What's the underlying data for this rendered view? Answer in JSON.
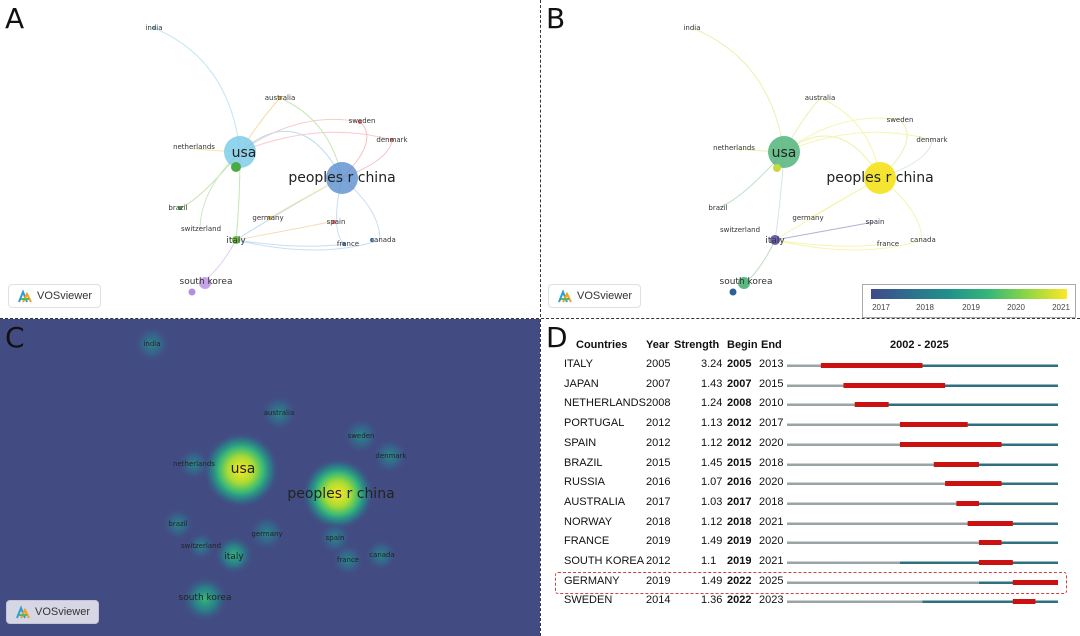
{
  "panel_labels": {
    "a": "A",
    "b": "B",
    "c": "C",
    "d": "D"
  },
  "vosviewer_label": "VOSviewer",
  "nodes": [
    {
      "name": "india"
    },
    {
      "name": "australia"
    },
    {
      "name": "sweden"
    },
    {
      "name": "denmark"
    },
    {
      "name": "netherlands"
    },
    {
      "name": "usa"
    },
    {
      "name": "peoples r china"
    },
    {
      "name": "brazil"
    },
    {
      "name": "germany"
    },
    {
      "name": "spain"
    },
    {
      "name": "switzerland"
    },
    {
      "name": "italy"
    },
    {
      "name": "france"
    },
    {
      "name": "canada"
    },
    {
      "name": "south korea"
    }
  ],
  "colorbar": {
    "ticks": [
      "2017",
      "2018",
      "2019",
      "2020",
      "2021"
    ],
    "colors": [
      "#3e4a89",
      "#21918c",
      "#fde725"
    ]
  },
  "chart_data": {
    "type": "table",
    "title": "2002 - 2025",
    "columns": [
      "Countries",
      "Year",
      "Strength",
      "Begin",
      "End",
      "2002 - 2025"
    ],
    "range": [
      2002,
      2025
    ],
    "rows": [
      {
        "country": "ITALY",
        "year": "2005",
        "strength": "3.24",
        "begin": "2005",
        "end": "2013"
      },
      {
        "country": "JAPAN",
        "year": "2007",
        "strength": "1.43",
        "begin": "2007",
        "end": "2015"
      },
      {
        "country": "NETHERLANDS",
        "year": "2008",
        "strength": "1.24",
        "begin": "2008",
        "end": "2010"
      },
      {
        "country": "PORTUGAL",
        "year": "2012",
        "strength": "1.13",
        "begin": "2012",
        "end": "2017"
      },
      {
        "country": "SPAIN",
        "year": "2012",
        "strength": "1.12",
        "begin": "2012",
        "end": "2020"
      },
      {
        "country": "BRAZIL",
        "year": "2015",
        "strength": "1.45",
        "begin": "2015",
        "end": "2018"
      },
      {
        "country": "RUSSIA",
        "year": "2016",
        "strength": "1.07",
        "begin": "2016",
        "end": "2020"
      },
      {
        "country": "AUSTRALIA",
        "year": "2017",
        "strength": "1.03",
        "begin": "2017",
        "end": "2018"
      },
      {
        "country": "NORWAY",
        "year": "2018",
        "strength": "1.12",
        "begin": "2018",
        "end": "2021"
      },
      {
        "country": "FRANCE",
        "year": "2019",
        "strength": "1.49",
        "begin": "2019",
        "end": "2020"
      },
      {
        "country": "SOUTH KOREA",
        "year": "2012",
        "strength": "1.1",
        "begin": "2019",
        "end": "2021"
      },
      {
        "country": "GERMANY",
        "year": "2019",
        "strength": "1.49",
        "begin": "2022",
        "end": "2025",
        "highlighted": true
      },
      {
        "country": "SWEDEN",
        "year": "2014",
        "strength": "1.36",
        "begin": "2022",
        "end": "2023"
      }
    ],
    "colors": {
      "burst": "#cc1111",
      "active": "#2f6f7e",
      "inactive": "#9aa3a6"
    }
  }
}
